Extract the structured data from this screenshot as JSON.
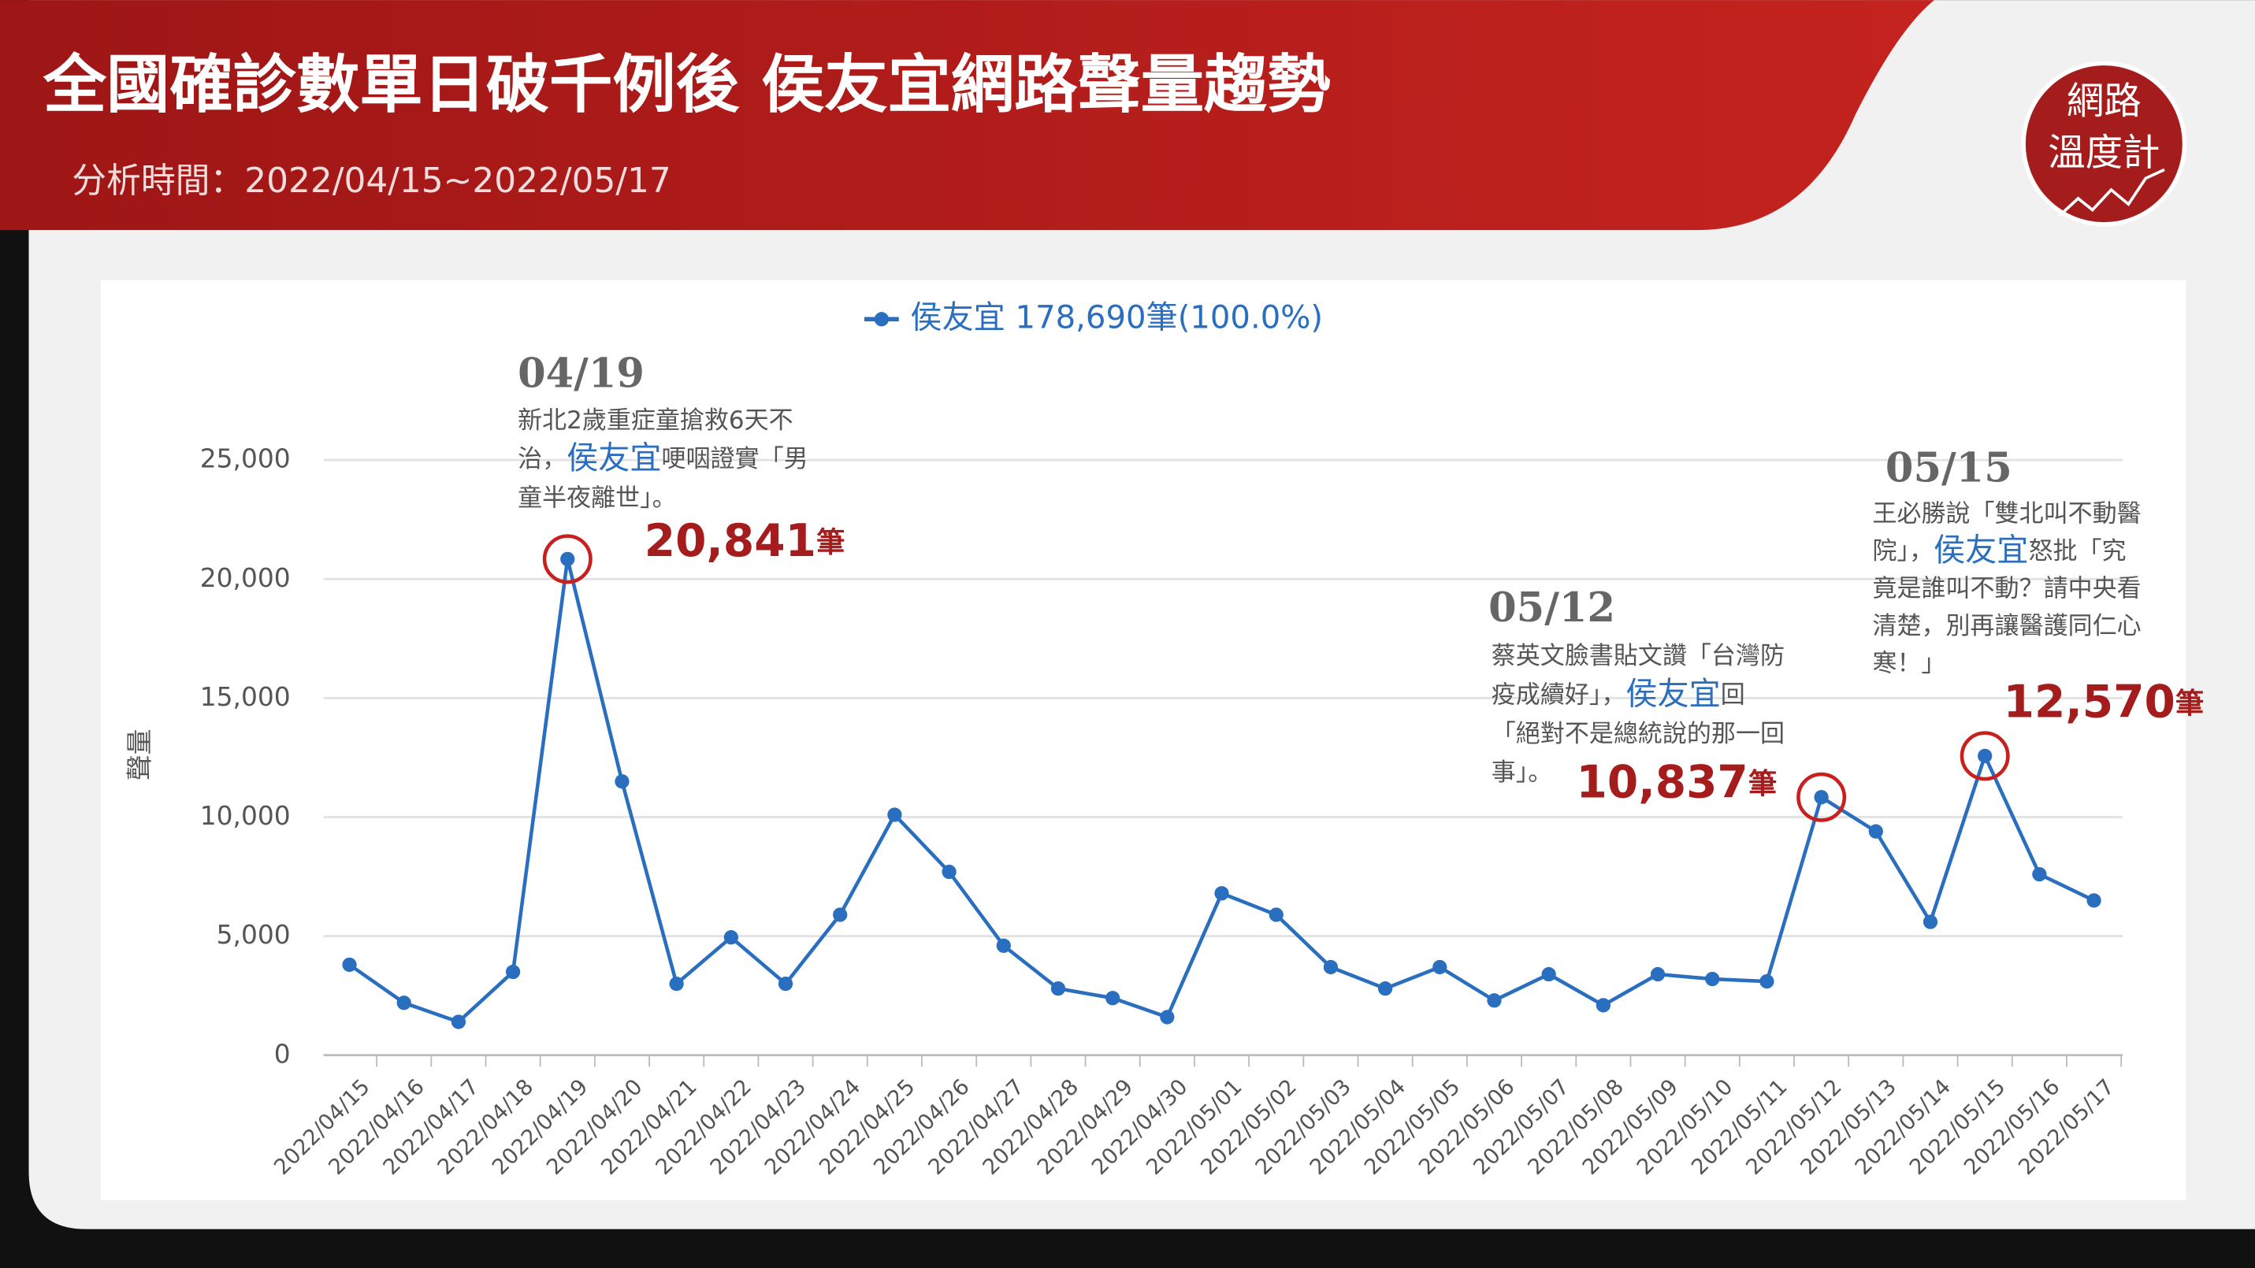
{
  "header": {
    "title": "全國確診數單日破千例後 侯友宜網路聲量趨勢",
    "subtitle": "分析時間：2022/04/15~2022/05/17",
    "logo": [
      "網路",
      "溫度計"
    ]
  },
  "chart_data": {
    "type": "line",
    "y_label": "聲量",
    "categories": [
      "2022/04/15",
      "2022/04/16",
      "2022/04/17",
      "2022/04/18",
      "2022/04/19",
      "2022/04/20",
      "2022/04/21",
      "2022/04/22",
      "2022/04/23",
      "2022/04/24",
      "2022/04/25",
      "2022/04/26",
      "2022/04/27",
      "2022/04/28",
      "2022/04/29",
      "2022/04/30",
      "2022/05/01",
      "2022/05/02",
      "2022/05/03",
      "2022/05/04",
      "2022/05/05",
      "2022/05/06",
      "2022/05/07",
      "2022/05/08",
      "2022/05/09",
      "2022/05/10",
      "2022/05/11",
      "2022/05/12",
      "2022/05/13",
      "2022/05/14",
      "2022/05/15",
      "2022/05/16",
      "2022/05/17"
    ],
    "series": [
      {
        "name": "侯友宜 178,690筆(100.0%)",
        "color": "#2a6fbf",
        "values": [
          3800,
          2200,
          1400,
          3500,
          20841,
          11500,
          3000,
          4950,
          3000,
          5900,
          10100,
          7700,
          4600,
          2800,
          2400,
          1600,
          6800,
          5900,
          3700,
          2800,
          3700,
          2300,
          3400,
          2100,
          3400,
          3200,
          3100,
          10837,
          9400,
          5600,
          12570,
          7600,
          6500
        ],
        "value_labels": [
          null,
          null,
          null,
          null,
          "20,841",
          null,
          null,
          null,
          null,
          null,
          null,
          null,
          null,
          null,
          null,
          null,
          null,
          null,
          null,
          null,
          null,
          null,
          null,
          null,
          null,
          null,
          null,
          "10,837",
          null,
          null,
          "12,570",
          null,
          null
        ]
      }
    ],
    "ylim": [
      0,
      25000
    ],
    "yticks": [
      0,
      {
        "value": 5000,
        "label": "5,000"
      },
      {
        "value": 10000,
        "label": "10,000"
      },
      {
        "value": 15000,
        "label": "15,000"
      },
      {
        "value": 20000,
        "label": "20,000"
      },
      {
        "value": 25000,
        "label": "25,000"
      }
    ],
    "grid": true,
    "highlight": "侯友宜",
    "highlight_color": "#2a6fbf",
    "label_color": "#a51c1c",
    "annotations": [
      {
        "date": "04/19",
        "unit": "筆",
        "lines": [
          [
            "新北2歲重症童搶救6天不"
          ],
          [
            "治，",
            "侯友宜",
            "哽咽證實「男"
          ],
          [
            "童半夜離世」。"
          ]
        ]
      },
      {
        "date": "05/12",
        "unit": "筆",
        "lines": [
          [
            "蔡英文臉書貼文讚「台灣防"
          ],
          [
            "疫成續好」，",
            "侯友宜",
            "回"
          ],
          [
            "「絕對不是總統說的那一回"
          ],
          [
            "事」。"
          ]
        ]
      },
      {
        "date": "05/15",
        "unit": "筆",
        "lines": [
          [
            "王必勝說「雙北叫不動醫"
          ],
          [
            "院」，",
            "侯友宜",
            "怒批「究"
          ],
          [
            "竟是誰叫不動？請中央看"
          ],
          [
            "清楚，別再讓醫護同仁心"
          ],
          [
            "寒！」"
          ]
        ]
      }
    ]
  }
}
